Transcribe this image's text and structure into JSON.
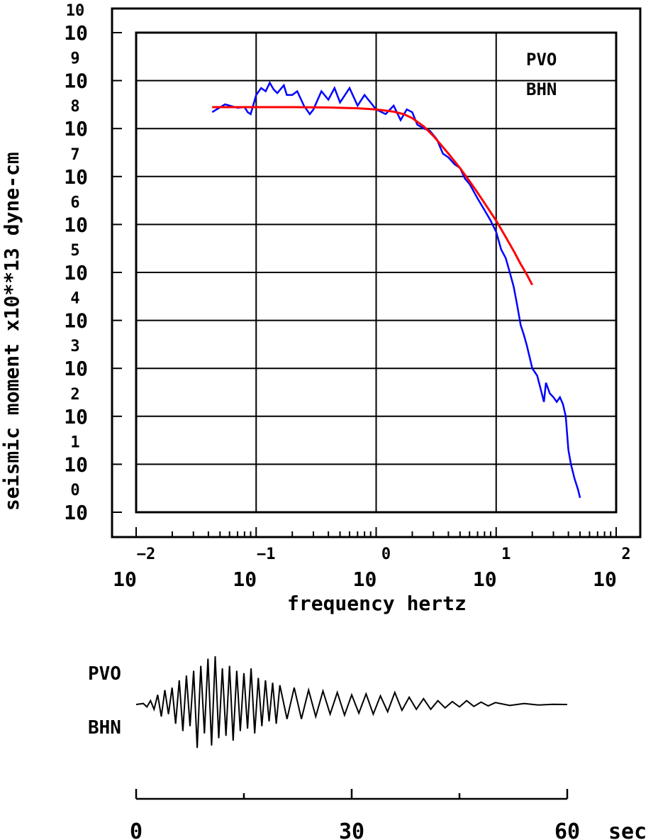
{
  "colors": {
    "spectrum": "#0000ff",
    "model_fit": "#ff0000",
    "ink": "#000000",
    "background": "#ffffff"
  },
  "chart_data": [
    {
      "type": "line",
      "title": "",
      "xlabel": "frequency  hertz",
      "ylabel": "seismic moment x10**13 dyne-cm",
      "x_scale": "log",
      "y_scale": "log",
      "xlim": [
        0.01,
        100
      ],
      "ylim": [
        1,
        10000000000
      ],
      "grid": true,
      "x_ticks": [
        {
          "base": "10",
          "exp": "-2"
        },
        {
          "base": "10",
          "exp": "-1"
        },
        {
          "base": "10",
          "exp": "0"
        },
        {
          "base": "10",
          "exp": "1"
        },
        {
          "base": "10",
          "exp": "2"
        }
      ],
      "y_ticks": [
        {
          "base": "10",
          "exp": "0"
        },
        {
          "base": "10",
          "exp": "1"
        },
        {
          "base": "10",
          "exp": "2"
        },
        {
          "base": "10",
          "exp": "3"
        },
        {
          "base": "10",
          "exp": "4"
        },
        {
          "base": "10",
          "exp": "5"
        },
        {
          "base": "10",
          "exp": "6"
        },
        {
          "base": "10",
          "exp": "7"
        },
        {
          "base": "10",
          "exp": "8"
        },
        {
          "base": "10",
          "exp": "9"
        },
        {
          "base": "10",
          "exp": "10"
        }
      ],
      "annotations": [
        "PVO",
        "BHN"
      ],
      "series": [
        {
          "role": "observed-spectrum",
          "color": "#0000ff",
          "x": [
            0.043,
            0.055,
            0.07,
            0.08,
            0.085,
            0.09,
            0.1,
            0.11,
            0.12,
            0.13,
            0.14,
            0.15,
            0.17,
            0.18,
            0.2,
            0.22,
            0.25,
            0.28,
            0.3,
            0.35,
            0.4,
            0.45,
            0.5,
            0.6,
            0.7,
            0.8,
            1.0,
            1.2,
            1.4,
            1.6,
            1.8,
            2.0,
            2.2,
            2.5,
            2.8,
            3.2,
            3.6,
            4.0,
            4.5,
            5.0,
            5.5,
            6.0,
            7.0,
            8.0,
            9.0,
            10.0,
            11.0,
            12.0,
            13.0,
            14.0,
            15.0,
            16.0,
            17.0,
            18.0,
            20.0,
            22.0,
            24.0,
            25.0,
            26.0,
            28.0,
            30.0,
            32.0,
            34.0,
            36.0,
            38.0,
            40.0,
            42.0,
            45.0,
            48.0,
            50.0
          ],
          "y": [
            220000000,
            320000000,
            270000000,
            280000000,
            220000000,
            200000000,
            500000000,
            700000000,
            600000000,
            900000000,
            650000000,
            550000000,
            800000000,
            500000000,
            500000000,
            600000000,
            300000000,
            200000000,
            250000000,
            600000000,
            400000000,
            700000000,
            350000000,
            700000000,
            300000000,
            500000000,
            250000000,
            200000000,
            300000000,
            150000000,
            250000000,
            220000000,
            120000000,
            100000000,
            90000000,
            60000000,
            30000000,
            25000000,
            18000000,
            15000000,
            9000000,
            7000000,
            3500000,
            2000000,
            1200000,
            700000,
            300000,
            200000,
            100000,
            50000,
            20000,
            8000,
            5000,
            3000,
            1000,
            700,
            300,
            200,
            500,
            300,
            250,
            200,
            250,
            180,
            100,
            20,
            10,
            5,
            3,
            2
          ]
        },
        {
          "role": "model-fit",
          "color": "#ff0000",
          "x": [
            0.043,
            0.1,
            0.2,
            0.4,
            0.7,
            1.0,
            1.4,
            1.7,
            2.0,
            2.5,
            3.0,
            4.0,
            5.0,
            6.0,
            7.0,
            8.0,
            10.0,
            12.0,
            14.0,
            16.0,
            18.0,
            20.0
          ],
          "y": [
            280000000,
            280000000,
            280000000,
            275000000,
            265000000,
            250000000,
            225000000,
            200000000,
            165000000,
            110000000,
            70000000,
            30000000,
            15000000,
            8000000,
            4600000,
            2800000,
            1200000,
            550000,
            280000,
            150000,
            90000,
            55000
          ]
        }
      ]
    },
    {
      "type": "line",
      "title": "",
      "xlabel": "sec",
      "xlim": [
        0,
        60
      ],
      "x_tick_labels": [
        "0",
        "30",
        "60"
      ],
      "annotations": [
        "PVO",
        "BHN"
      ],
      "series": [
        {
          "role": "seismogram",
          "color": "#000000",
          "t": [
            0.0,
            1.0,
            1.5,
            2.0,
            2.5,
            3.0,
            3.5,
            4.0,
            4.5,
            5.0,
            5.5,
            6.0,
            6.5,
            7.0,
            7.5,
            8.0,
            8.5,
            9.0,
            9.5,
            10.0,
            10.5,
            11.0,
            11.5,
            12.0,
            12.5,
            13.0,
            13.5,
            14.0,
            14.5,
            15.0,
            15.5,
            16.0,
            16.5,
            17.0,
            17.5,
            18.0,
            18.5,
            19.0,
            19.5,
            20.0,
            21.0,
            22.0,
            23.0,
            24.0,
            25.0,
            26.0,
            27.0,
            28.0,
            29.0,
            30.0,
            31.0,
            32.0,
            33.0,
            34.0,
            35.0,
            36.0,
            37.0,
            38.0,
            39.0,
            40.0,
            41.0,
            42.0,
            43.0,
            44.0,
            45.0,
            46.0,
            47.0,
            48.0,
            49.0,
            50.0,
            52.0,
            54.0,
            56.0,
            58.0,
            60.0
          ],
          "amp": [
            0.0,
            0.02,
            -0.05,
            0.08,
            -0.1,
            0.2,
            -0.25,
            0.3,
            -0.2,
            0.35,
            -0.4,
            0.5,
            -0.55,
            0.6,
            -0.45,
            0.7,
            -0.9,
            0.8,
            -0.6,
            0.95,
            -0.85,
            1.0,
            -0.7,
            0.75,
            -0.65,
            0.8,
            -0.75,
            0.7,
            -0.55,
            0.65,
            -0.5,
            0.75,
            -0.6,
            0.55,
            -0.45,
            0.5,
            -0.35,
            0.45,
            -0.4,
            0.4,
            -0.3,
            0.35,
            -0.3,
            0.3,
            -0.25,
            0.28,
            -0.2,
            0.25,
            -0.22,
            0.2,
            -0.18,
            0.22,
            -0.2,
            0.18,
            -0.15,
            0.25,
            -0.12,
            0.15,
            -0.1,
            0.12,
            -0.1,
            0.08,
            -0.07,
            0.06,
            -0.05,
            0.08,
            -0.04,
            0.05,
            -0.03,
            0.04,
            -0.02,
            0.02,
            -0.01,
            0.005,
            0.0
          ]
        }
      ]
    }
  ]
}
